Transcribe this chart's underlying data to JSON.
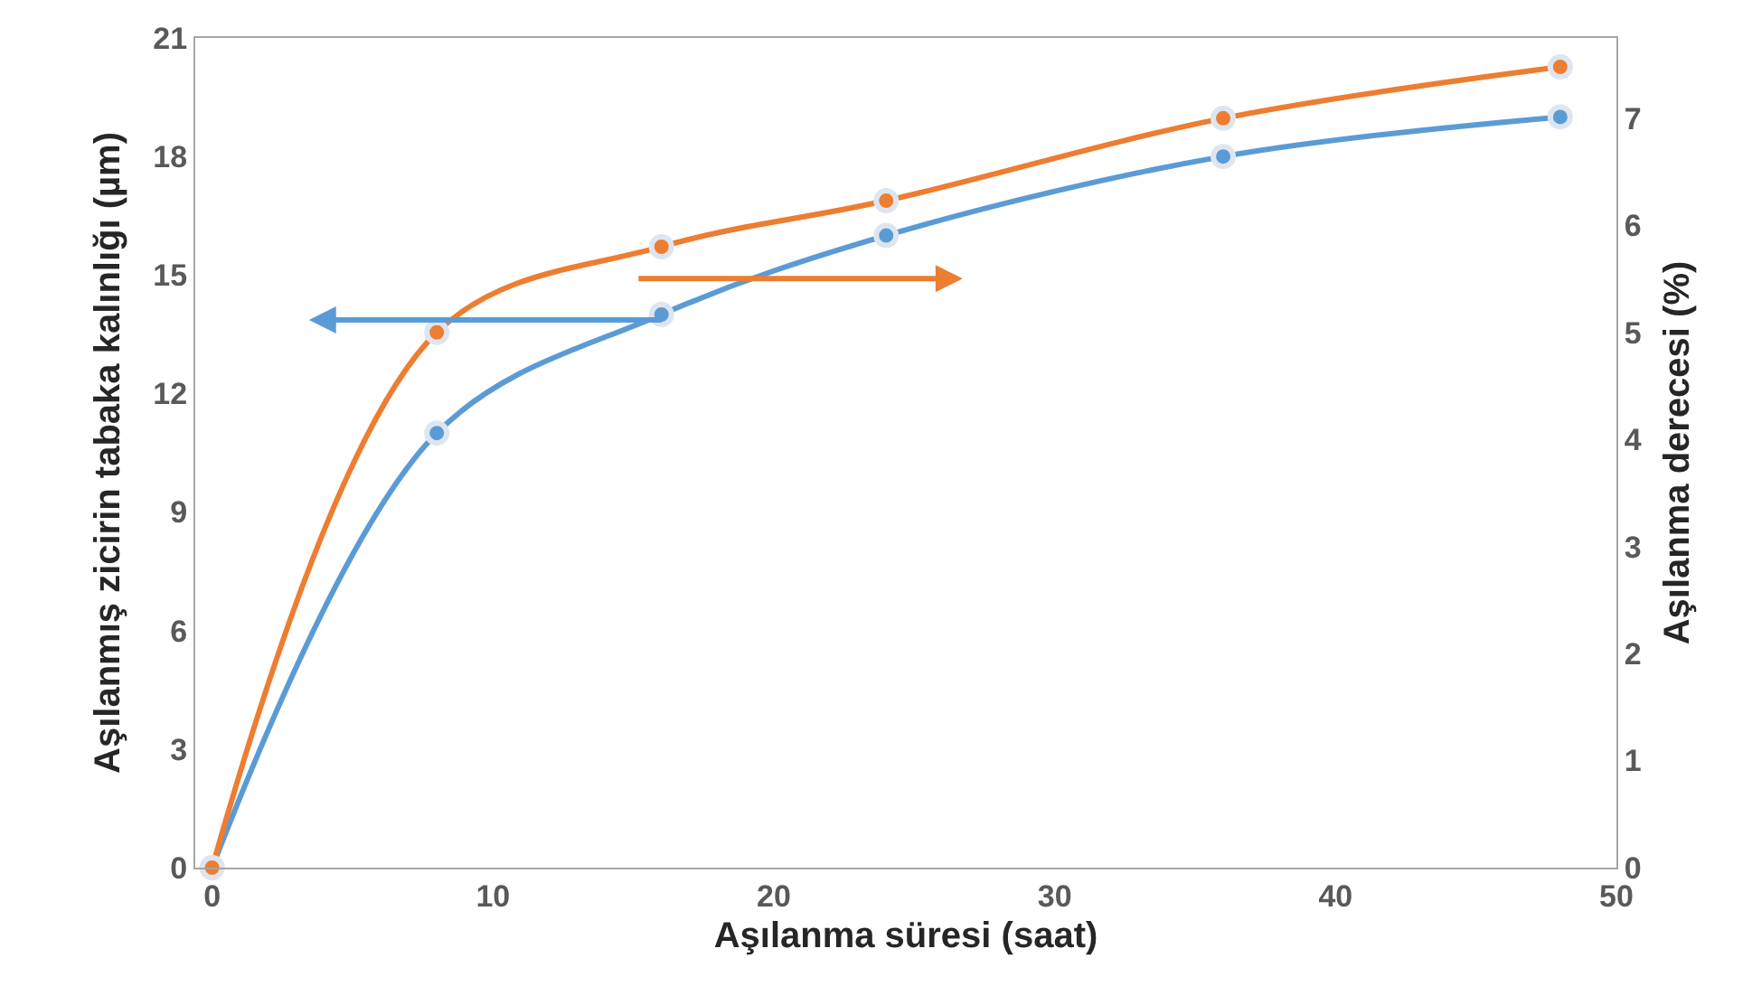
{
  "chart_data": {
    "type": "line",
    "xlabel": "Aşılanma süresi (saat)",
    "ylabel": "Aşılanmış zicirin tabaka kalınlığı (µm)",
    "y2label": "Aşılanma derecesi (%)",
    "x": [
      0,
      8,
      16,
      24,
      36,
      48
    ],
    "series": [
      {
        "color": "#5b9bd5",
        "values": [
          0,
          11,
          14,
          16,
          18,
          19
        ]
      },
      {
        "color": "#ed7d31",
        "axis": "y2",
        "values": [
          0,
          5.0,
          5.8,
          6.23,
          7.0,
          7.48
        ]
      }
    ],
    "xlim": [
      -0.6,
      50
    ],
    "xticks": [
      0,
      10,
      20,
      30,
      40,
      50
    ],
    "ylim": [
      0,
      21
    ],
    "yticks": [
      0,
      3,
      6,
      9,
      12,
      15,
      18,
      21
    ],
    "y2lim": [
      0,
      7.75
    ],
    "y2ticks": [
      0,
      1,
      2,
      3,
      4,
      5,
      6,
      7
    ],
    "marker": "circle",
    "line_style": "solid",
    "legend": false
  }
}
